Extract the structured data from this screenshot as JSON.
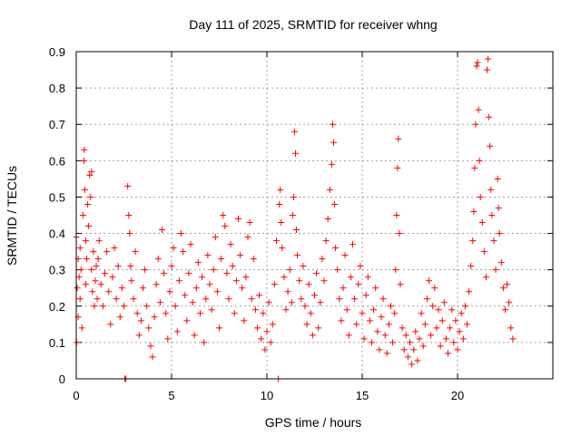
{
  "chart_data": {
    "type": "scatter",
    "title": "Day 111 of 2025, SRMTID for receiver whng",
    "xlabel": "GPS time / hours",
    "ylabel": "SRMTID / TECUs",
    "xlim": [
      0,
      25
    ],
    "ylim": [
      0,
      0.9
    ],
    "xticks": [
      0,
      5,
      10,
      15,
      20
    ],
    "yticks": [
      0,
      0.1,
      0.2,
      0.3,
      0.4,
      0.5,
      0.6,
      0.7,
      0.8,
      0.9
    ],
    "xtick_labels": [
      "0",
      "5",
      "10",
      "15",
      "20"
    ],
    "ytick_labels": [
      "0",
      "0.1",
      "0.2",
      "0.3",
      "0.4",
      "0.5",
      "0.6",
      "0.7",
      "0.8",
      "0.9"
    ],
    "grid": true,
    "marker": "+",
    "series": [
      {
        "name": "SRMTID",
        "color": "#ff0000",
        "points": [
          [
            0.0,
            0.39
          ],
          [
            0.02,
            0.1
          ],
          [
            0.05,
            0.25
          ],
          [
            0.1,
            0.33
          ],
          [
            0.1,
            0.17
          ],
          [
            0.15,
            0.28
          ],
          [
            0.2,
            0.36
          ],
          [
            0.2,
            0.22
          ],
          [
            0.25,
            0.3
          ],
          [
            0.3,
            0.14
          ],
          [
            0.35,
            0.45
          ],
          [
            0.4,
            0.6
          ],
          [
            0.42,
            0.63
          ],
          [
            0.45,
            0.52
          ],
          [
            0.5,
            0.26
          ],
          [
            0.5,
            0.38
          ],
          [
            0.55,
            0.33
          ],
          [
            0.6,
            0.48
          ],
          [
            0.65,
            0.42
          ],
          [
            0.7,
            0.56
          ],
          [
            0.75,
            0.5
          ],
          [
            0.8,
            0.57
          ],
          [
            0.8,
            0.3
          ],
          [
            0.85,
            0.24
          ],
          [
            0.9,
            0.35
          ],
          [
            0.95,
            0.2
          ],
          [
            1.0,
            0.27
          ],
          [
            1.05,
            0.31
          ],
          [
            1.1,
            0.22
          ],
          [
            1.15,
            0.33
          ],
          [
            1.2,
            0.38
          ],
          [
            1.3,
            0.26
          ],
          [
            1.4,
            0.2
          ],
          [
            1.5,
            0.29
          ],
          [
            1.6,
            0.35
          ],
          [
            1.7,
            0.24
          ],
          [
            1.8,
            0.15
          ],
          [
            1.9,
            0.28
          ],
          [
            2.0,
            0.36
          ],
          [
            2.1,
            0.22
          ],
          [
            2.2,
            0.31
          ],
          [
            2.3,
            0.17
          ],
          [
            2.4,
            0.25
          ],
          [
            2.5,
            0.2
          ],
          [
            2.55,
            0.0
          ],
          [
            2.6,
            0.0
          ],
          [
            2.7,
            0.53
          ],
          [
            2.75,
            0.45
          ],
          [
            2.8,
            0.4
          ],
          [
            2.85,
            0.31
          ],
          [
            2.9,
            0.27
          ],
          [
            3.0,
            0.22
          ],
          [
            3.1,
            0.35
          ],
          [
            3.2,
            0.18
          ],
          [
            3.3,
            0.12
          ],
          [
            3.4,
            0.16
          ],
          [
            3.5,
            0.25
          ],
          [
            3.6,
            0.3
          ],
          [
            3.7,
            0.2
          ],
          [
            3.8,
            0.14
          ],
          [
            3.9,
            0.09
          ],
          [
            4.0,
            0.06
          ],
          [
            4.1,
            0.17
          ],
          [
            4.2,
            0.26
          ],
          [
            4.3,
            0.33
          ],
          [
            4.4,
            0.21
          ],
          [
            4.5,
            0.41
          ],
          [
            4.6,
            0.29
          ],
          [
            4.7,
            0.18
          ],
          [
            4.8,
            0.11
          ],
          [
            4.9,
            0.24
          ],
          [
            5.0,
            0.31
          ],
          [
            5.1,
            0.36
          ],
          [
            5.2,
            0.2
          ],
          [
            5.3,
            0.13
          ],
          [
            5.4,
            0.27
          ],
          [
            5.5,
            0.4
          ],
          [
            5.6,
            0.35
          ],
          [
            5.7,
            0.23
          ],
          [
            5.8,
            0.16
          ],
          [
            5.9,
            0.29
          ],
          [
            6.0,
            0.37
          ],
          [
            6.1,
            0.21
          ],
          [
            6.2,
            0.12
          ],
          [
            6.3,
            0.25
          ],
          [
            6.4,
            0.32
          ],
          [
            6.5,
            0.18
          ],
          [
            6.6,
            0.28
          ],
          [
            6.7,
            0.1
          ],
          [
            6.8,
            0.22
          ],
          [
            6.9,
            0.34
          ],
          [
            7.0,
            0.26
          ],
          [
            7.1,
            0.19
          ],
          [
            7.2,
            0.3
          ],
          [
            7.3,
            0.39
          ],
          [
            7.4,
            0.24
          ],
          [
            7.5,
            0.14
          ],
          [
            7.6,
            0.33
          ],
          [
            7.7,
            0.45
          ],
          [
            7.8,
            0.42
          ],
          [
            7.9,
            0.29
          ],
          [
            8.0,
            0.22
          ],
          [
            8.1,
            0.37
          ],
          [
            8.2,
            0.31
          ],
          [
            8.3,
            0.18
          ],
          [
            8.4,
            0.27
          ],
          [
            8.5,
            0.44
          ],
          [
            8.6,
            0.34
          ],
          [
            8.7,
            0.25
          ],
          [
            8.8,
            0.16
          ],
          [
            8.9,
            0.28
          ],
          [
            9.0,
            0.39
          ],
          [
            9.1,
            0.43
          ],
          [
            9.2,
            0.22
          ],
          [
            9.3,
            0.33
          ],
          [
            9.4,
            0.19
          ],
          [
            9.5,
            0.14
          ],
          [
            9.6,
            0.23
          ],
          [
            9.7,
            0.11
          ],
          [
            9.8,
            0.18
          ],
          [
            9.9,
            0.08
          ],
          [
            10.0,
            0.13
          ],
          [
            10.1,
            0.21
          ],
          [
            10.2,
            0.1
          ],
          [
            10.3,
            0.15
          ],
          [
            10.4,
            0.26
          ],
          [
            10.5,
            0.38
          ],
          [
            10.6,
            0.0
          ],
          [
            10.65,
            0.48
          ],
          [
            10.7,
            0.52
          ],
          [
            10.75,
            0.43
          ],
          [
            10.8,
            0.36
          ],
          [
            10.9,
            0.28
          ],
          [
            11.0,
            0.19
          ],
          [
            11.1,
            0.24
          ],
          [
            11.2,
            0.3
          ],
          [
            11.3,
            0.21
          ],
          [
            11.35,
            0.45
          ],
          [
            11.4,
            0.5
          ],
          [
            11.45,
            0.68
          ],
          [
            11.5,
            0.62
          ],
          [
            11.55,
            0.41
          ],
          [
            11.6,
            0.34
          ],
          [
            11.7,
            0.27
          ],
          [
            11.8,
            0.22
          ],
          [
            11.9,
            0.31
          ],
          [
            12.0,
            0.2
          ],
          [
            12.1,
            0.15
          ],
          [
            12.2,
            0.26
          ],
          [
            12.3,
            0.18
          ],
          [
            12.4,
            0.12
          ],
          [
            12.5,
            0.23
          ],
          [
            12.6,
            0.29
          ],
          [
            12.7,
            0.14
          ],
          [
            12.8,
            0.21
          ],
          [
            12.9,
            0.33
          ],
          [
            13.0,
            0.27
          ],
          [
            13.1,
            0.38
          ],
          [
            13.2,
            0.44
          ],
          [
            13.3,
            0.52
          ],
          [
            13.4,
            0.59
          ],
          [
            13.45,
            0.7
          ],
          [
            13.5,
            0.65
          ],
          [
            13.55,
            0.48
          ],
          [
            13.6,
            0.36
          ],
          [
            13.7,
            0.3
          ],
          [
            13.8,
            0.22
          ],
          [
            13.9,
            0.16
          ],
          [
            14.0,
            0.25
          ],
          [
            14.1,
            0.34
          ],
          [
            14.2,
            0.19
          ],
          [
            14.3,
            0.12
          ],
          [
            14.4,
            0.28
          ],
          [
            14.5,
            0.37
          ],
          [
            14.6,
            0.22
          ],
          [
            14.7,
            0.15
          ],
          [
            14.8,
            0.26
          ],
          [
            14.9,
            0.31
          ],
          [
            15.0,
            0.18
          ],
          [
            15.1,
            0.11
          ],
          [
            15.2,
            0.23
          ],
          [
            15.3,
            0.28
          ],
          [
            15.4,
            0.16
          ],
          [
            15.5,
            0.1
          ],
          [
            15.6,
            0.19
          ],
          [
            15.7,
            0.25
          ],
          [
            15.8,
            0.13
          ],
          [
            15.9,
            0.08
          ],
          [
            16.0,
            0.17
          ],
          [
            16.1,
            0.22
          ],
          [
            16.2,
            0.12
          ],
          [
            16.3,
            0.07
          ],
          [
            16.4,
            0.15
          ],
          [
            16.5,
            0.2
          ],
          [
            16.6,
            0.1
          ],
          [
            16.7,
            0.18
          ],
          [
            16.75,
            0.3
          ],
          [
            16.8,
            0.45
          ],
          [
            16.85,
            0.58
          ],
          [
            16.9,
            0.66
          ],
          [
            16.95,
            0.4
          ],
          [
            17.0,
            0.26
          ],
          [
            17.1,
            0.14
          ],
          [
            17.2,
            0.08
          ],
          [
            17.3,
            0.12
          ],
          [
            17.4,
            0.06
          ],
          [
            17.5,
            0.1
          ],
          [
            17.6,
            0.04
          ],
          [
            17.7,
            0.08
          ],
          [
            17.8,
            0.13
          ],
          [
            17.9,
            0.05
          ],
          [
            18.0,
            0.11
          ],
          [
            18.1,
            0.18
          ],
          [
            18.2,
            0.09
          ],
          [
            18.3,
            0.15
          ],
          [
            18.4,
            0.22
          ],
          [
            18.5,
            0.27
          ],
          [
            18.6,
            0.12
          ],
          [
            18.7,
            0.2
          ],
          [
            18.8,
            0.25
          ],
          [
            18.9,
            0.14
          ],
          [
            19.0,
            0.19
          ],
          [
            19.1,
            0.09
          ],
          [
            19.2,
            0.16
          ],
          [
            19.3,
            0.21
          ],
          [
            19.4,
            0.11
          ],
          [
            19.5,
            0.07
          ],
          [
            19.6,
            0.14
          ],
          [
            19.7,
            0.19
          ],
          [
            19.8,
            0.1
          ],
          [
            19.9,
            0.16
          ],
          [
            20.0,
            0.08
          ],
          [
            20.1,
            0.13
          ],
          [
            20.2,
            0.18
          ],
          [
            20.3,
            0.11
          ],
          [
            20.4,
            0.2
          ],
          [
            20.5,
            0.15
          ],
          [
            20.6,
            0.24
          ],
          [
            20.7,
            0.31
          ],
          [
            20.8,
            0.38
          ],
          [
            20.85,
            0.46
          ],
          [
            20.9,
            0.58
          ],
          [
            20.95,
            0.7
          ],
          [
            21.0,
            0.86
          ],
          [
            21.05,
            0.87
          ],
          [
            21.1,
            0.74
          ],
          [
            21.15,
            0.6
          ],
          [
            21.2,
            0.5
          ],
          [
            21.3,
            0.43
          ],
          [
            21.4,
            0.35
          ],
          [
            21.5,
            0.28
          ],
          [
            21.55,
            0.85
          ],
          [
            21.6,
            0.88
          ],
          [
            21.65,
            0.72
          ],
          [
            21.7,
            0.64
          ],
          [
            21.75,
            0.52
          ],
          [
            21.8,
            0.45
          ],
          [
            21.9,
            0.38
          ],
          [
            22.0,
            0.3
          ],
          [
            22.1,
            0.55
          ],
          [
            22.15,
            0.47
          ],
          [
            22.2,
            0.4
          ],
          [
            22.3,
            0.32
          ],
          [
            22.4,
            0.25
          ],
          [
            22.5,
            0.19
          ],
          [
            22.6,
            0.26
          ],
          [
            22.7,
            0.21
          ],
          [
            22.8,
            0.14
          ],
          [
            22.9,
            0.11
          ]
        ]
      }
    ]
  }
}
